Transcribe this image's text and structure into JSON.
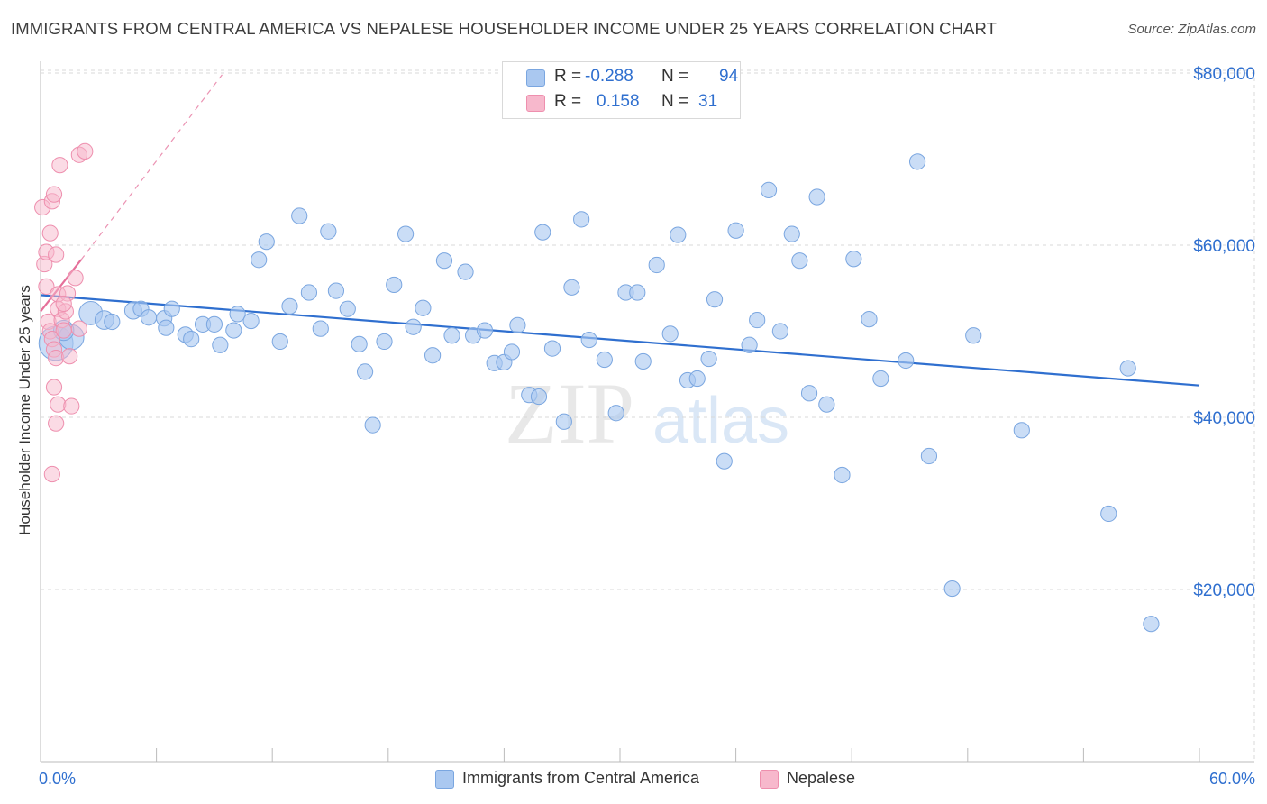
{
  "title": "IMMIGRANTS FROM CENTRAL AMERICA VS NEPALESE HOUSEHOLDER INCOME UNDER 25 YEARS CORRELATION CHART",
  "source": "Source: ZipAtlas.com",
  "watermark": {
    "zip": "ZIP",
    "atlas": "atlas"
  },
  "stats": {
    "rows": [
      {
        "r_label": "R =",
        "r_value": "-0.288",
        "n_label": "N =",
        "n_value": "94"
      },
      {
        "r_label": "R =",
        "r_value": "0.158",
        "n_label": "N =",
        "n_value": "31"
      }
    ]
  },
  "legend": {
    "items": [
      {
        "label": "Immigrants from Central America"
      },
      {
        "label": "Nepalese"
      }
    ]
  },
  "colors": {
    "blue_fill": "#aac8f0",
    "blue_stroke": "#7aa6e0",
    "blue_line": "#2f6fcf",
    "pink_fill": "#f7b8cc",
    "pink_stroke": "#ee8fae",
    "pink_line": "#e5709a",
    "axis_text": "#2f6fcf",
    "grid": "#d8d8d8"
  },
  "chart_data": {
    "type": "scatter",
    "xlabel": "",
    "ylabel": "Householder Income Under 25 years",
    "xlim": [
      0,
      60
    ],
    "ylim": [
      0,
      84000
    ],
    "x_tick_labels": {
      "left": "0.0%",
      "right": "60.0%"
    },
    "y_ticks": [
      {
        "value": 20000,
        "label": "$20,000"
      },
      {
        "value": 40000,
        "label": "$40,000"
      },
      {
        "value": 60000,
        "label": "$60,000"
      },
      {
        "value": 80000,
        "label": "$80,000"
      }
    ],
    "grid": "horizontal dashed",
    "legend_position": "bottom-center",
    "series": [
      {
        "name": "Immigrants from Central America",
        "color": "#aac8f0",
        "trend": {
          "x": [
            0,
            60
          ],
          "y": [
            54200,
            43700
          ]
        },
        "points": [
          [
            0.8,
            48600,
            2.2
          ],
          [
            1.6,
            49300,
            1.6
          ],
          [
            1.2,
            50100,
            1.3
          ],
          [
            2.6,
            52100,
            1.5
          ],
          [
            3.3,
            51300,
            1.2
          ],
          [
            3.7,
            51100,
            1.0
          ],
          [
            4.8,
            52400,
            1.1
          ],
          [
            5.2,
            52600,
            1.0
          ],
          [
            5.6,
            51600,
            1.0
          ],
          [
            6.4,
            51500,
            1.0
          ],
          [
            6.5,
            50400,
            1.0
          ],
          [
            6.8,
            52600,
            1.0
          ],
          [
            7.5,
            49600,
            1.0
          ],
          [
            7.8,
            49100,
            1.0
          ],
          [
            8.4,
            50800,
            1.0
          ],
          [
            9.0,
            50800,
            1.0
          ],
          [
            9.3,
            48400,
            1.0
          ],
          [
            10.0,
            50100,
            1.0
          ],
          [
            10.2,
            52000,
            1.0
          ],
          [
            10.9,
            51200,
            1.0
          ],
          [
            11.3,
            58300,
            1.0
          ],
          [
            11.7,
            60400,
            1.0
          ],
          [
            12.4,
            48800,
            1.0
          ],
          [
            12.9,
            52900,
            1.0
          ],
          [
            13.4,
            63400,
            1.0
          ],
          [
            13.9,
            54500,
            1.0
          ],
          [
            14.5,
            50300,
            1.0
          ],
          [
            14.9,
            61600,
            1.0
          ],
          [
            15.3,
            54700,
            1.0
          ],
          [
            15.9,
            52600,
            1.0
          ],
          [
            16.5,
            48500,
            1.0
          ],
          [
            16.8,
            45300,
            1.0
          ],
          [
            17.2,
            39100,
            1.0
          ],
          [
            17.8,
            48800,
            1.0
          ],
          [
            18.3,
            55400,
            1.0
          ],
          [
            18.9,
            61300,
            1.0
          ],
          [
            19.3,
            50500,
            1.0
          ],
          [
            19.8,
            52700,
            1.0
          ],
          [
            20.3,
            47200,
            1.0
          ],
          [
            20.9,
            58200,
            1.0
          ],
          [
            21.3,
            49500,
            1.0
          ],
          [
            22.0,
            56900,
            1.0
          ],
          [
            22.4,
            49500,
            1.0
          ],
          [
            23.0,
            50100,
            1.0
          ],
          [
            23.5,
            46300,
            1.0
          ],
          [
            24.0,
            46400,
            1.0
          ],
          [
            24.4,
            47600,
            1.0
          ],
          [
            24.7,
            50700,
            1.0
          ],
          [
            25.3,
            42600,
            1.0
          ],
          [
            25.8,
            42400,
            1.0
          ],
          [
            26.0,
            61500,
            1.0
          ],
          [
            26.5,
            48000,
            1.0
          ],
          [
            27.1,
            39500,
            1.0
          ],
          [
            27.5,
            55100,
            1.0
          ],
          [
            28.0,
            63000,
            1.0
          ],
          [
            28.4,
            49000,
            1.0
          ],
          [
            29.2,
            46700,
            1.0
          ],
          [
            29.8,
            40500,
            1.0
          ],
          [
            30.3,
            54500,
            1.0
          ],
          [
            30.9,
            54500,
            1.0
          ],
          [
            31.2,
            46500,
            1.0
          ],
          [
            31.9,
            57700,
            1.0
          ],
          [
            32.6,
            49700,
            1.0
          ],
          [
            33.0,
            61200,
            1.0
          ],
          [
            33.5,
            44300,
            1.0
          ],
          [
            34.0,
            44500,
            1.0
          ],
          [
            34.6,
            46800,
            1.0
          ],
          [
            34.9,
            53700,
            1.0
          ],
          [
            35.4,
            34900,
            1.0
          ],
          [
            36.0,
            61700,
            1.0
          ],
          [
            36.7,
            48400,
            1.0
          ],
          [
            37.1,
            51300,
            1.0
          ],
          [
            37.7,
            66400,
            1.0
          ],
          [
            38.3,
            50000,
            1.0
          ],
          [
            38.9,
            61300,
            1.0
          ],
          [
            39.3,
            58200,
            1.0
          ],
          [
            39.8,
            42800,
            1.0
          ],
          [
            40.2,
            65600,
            1.0
          ],
          [
            40.7,
            41500,
            1.0
          ],
          [
            41.5,
            33300,
            1.0
          ],
          [
            42.1,
            58400,
            1.0
          ],
          [
            42.9,
            51400,
            1.0
          ],
          [
            43.5,
            44500,
            1.0
          ],
          [
            44.8,
            46600,
            1.0
          ],
          [
            45.4,
            69700,
            1.0
          ],
          [
            46.0,
            35500,
            1.0
          ],
          [
            47.2,
            20100,
            1.0
          ],
          [
            48.3,
            49500,
            1.0
          ],
          [
            50.8,
            38500,
            1.0
          ],
          [
            55.3,
            28800,
            1.0
          ],
          [
            56.3,
            45700,
            1.0
          ],
          [
            57.5,
            16000,
            1.0
          ]
        ]
      },
      {
        "name": "Nepalese",
        "color": "#f7b8cc",
        "trend": {
          "x": [
            0,
            2.1
          ],
          "y": [
            52300,
            58300
          ],
          "extended_to": {
            "x": 9.4,
            "y": 79800
          }
        },
        "points": [
          [
            0.1,
            64400
          ],
          [
            0.2,
            57800
          ],
          [
            0.3,
            55200
          ],
          [
            0.4,
            51100
          ],
          [
            0.5,
            50000
          ],
          [
            0.6,
            49100
          ],
          [
            0.7,
            47900
          ],
          [
            0.8,
            46900
          ],
          [
            0.3,
            59200
          ],
          [
            0.5,
            61400
          ],
          [
            0.6,
            65100
          ],
          [
            0.7,
            65900
          ],
          [
            0.8,
            58900
          ],
          [
            0.9,
            54300
          ],
          [
            0.9,
            52600
          ],
          [
            0.6,
            33400
          ],
          [
            0.8,
            39300
          ],
          [
            0.9,
            41500
          ],
          [
            0.7,
            43500
          ],
          [
            1.0,
            69300
          ],
          [
            1.1,
            51300
          ],
          [
            1.2,
            50100
          ],
          [
            1.3,
            52300
          ],
          [
            1.4,
            54400
          ],
          [
            1.2,
            53200
          ],
          [
            1.6,
            41300
          ],
          [
            1.8,
            56200
          ],
          [
            1.5,
            47100
          ],
          [
            2.0,
            50300
          ],
          [
            2.0,
            70500
          ],
          [
            2.3,
            70900
          ]
        ]
      }
    ]
  }
}
